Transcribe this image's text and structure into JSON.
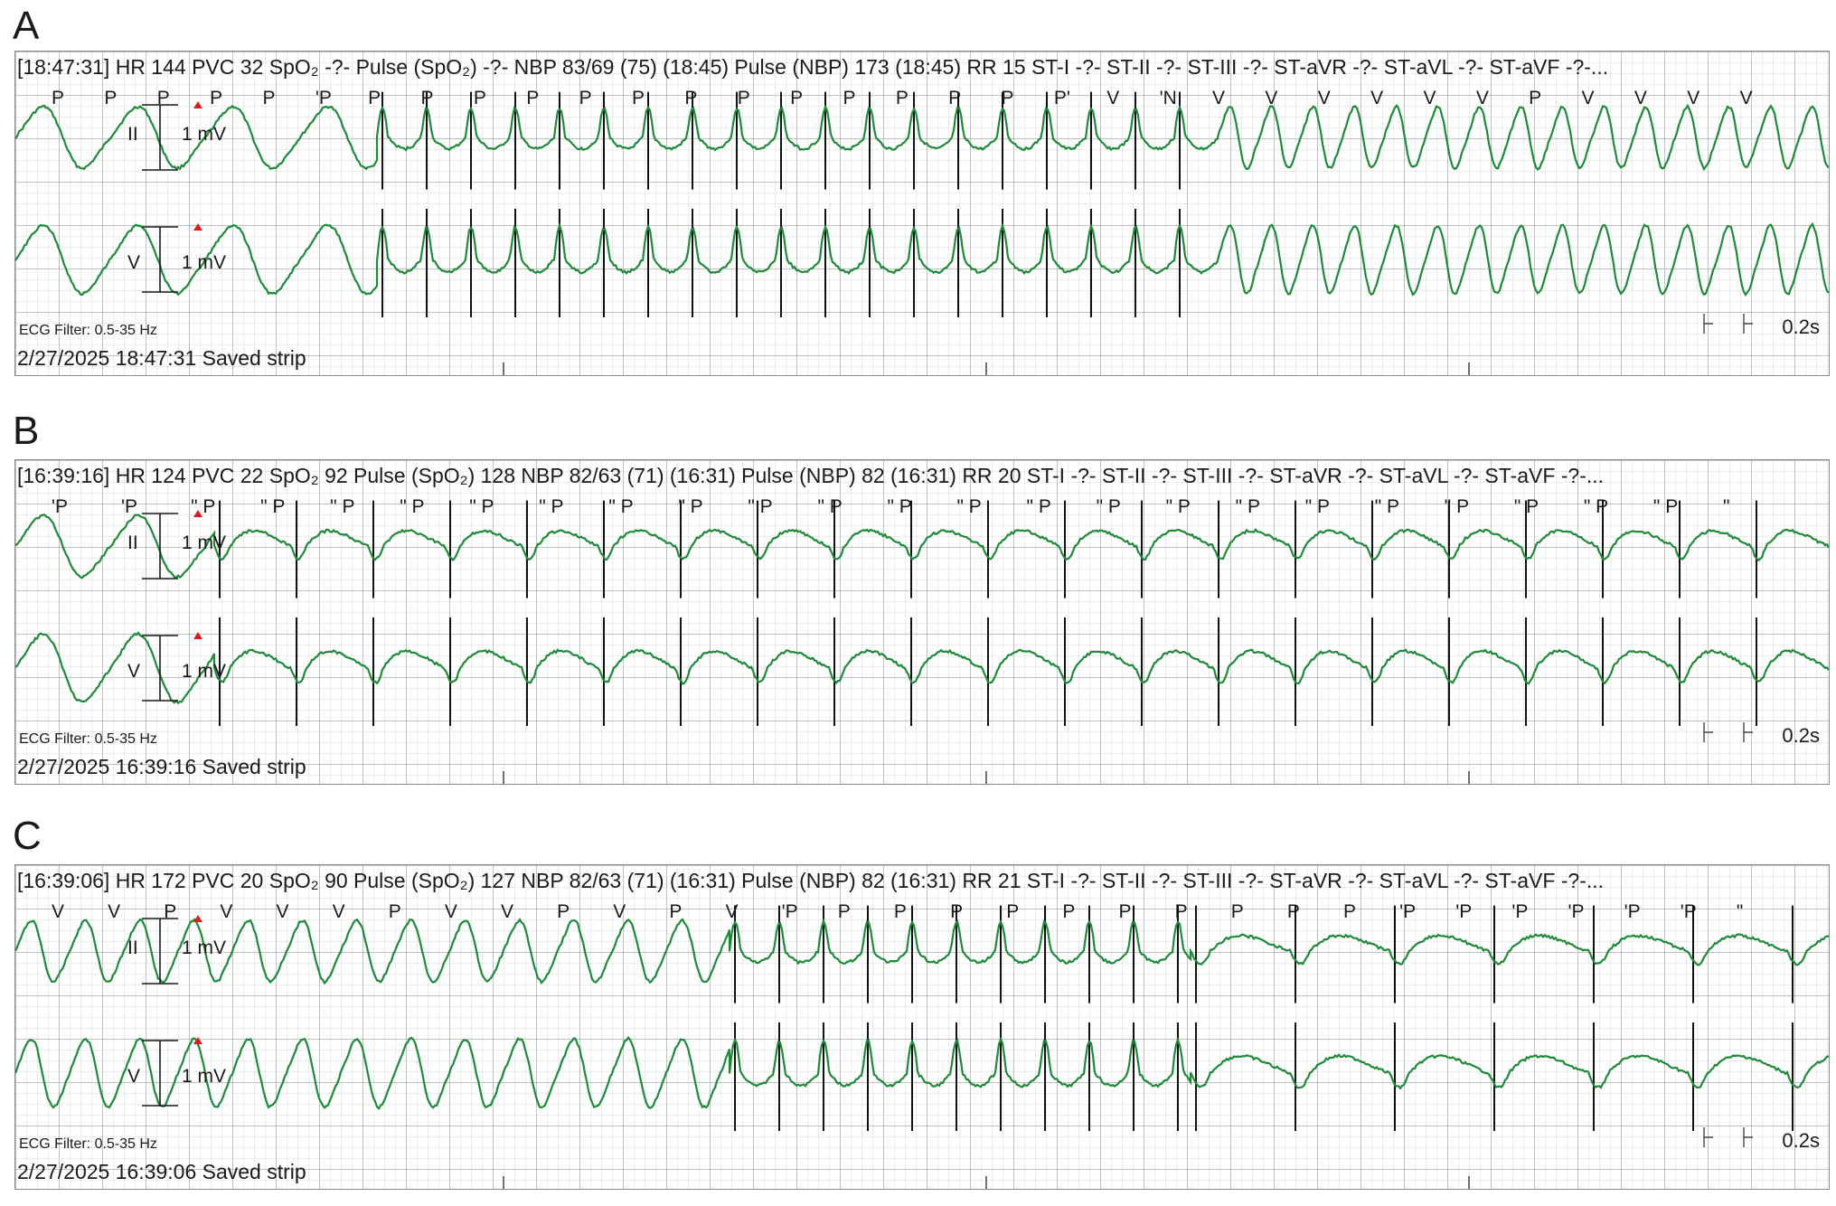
{
  "panels": [
    {
      "letter": "A",
      "header": "[18:47:31] HR 144  PVC 32  SpO₂ -?-  Pulse (SpO₂) -?-  NBP 83/69 (75) (18:45)  Pulse (NBP) 173 (18:45)  RR 15  ST-I -?-  ST-II -?-  ST-III -?-  ST-aVR -?-  ST-aVL -?-  ST-aVF -?-...",
      "beat_labels": [
        "P",
        "P",
        "P",
        "P",
        "P",
        "'P",
        "P",
        "P",
        "P",
        "P",
        "P",
        "P",
        "P",
        "P",
        "P",
        "P",
        "P",
        "P",
        "P",
        "P'",
        "V",
        "'N",
        "V",
        "V",
        "V",
        "V",
        "V",
        "V",
        "P",
        "V",
        "V",
        "V",
        "V"
      ],
      "lead_top": "II",
      "lead_bottom": "V",
      "calibration": "1 mV",
      "filter": "ECG Filter: 0.5-35 Hz",
      "saved": "2/27/2025 18:47:31  Saved strip",
      "scale": "0.2s"
    },
    {
      "letter": "B",
      "header": "[16:39:16] HR 124  PVC 22  SpO₂ 92  Pulse (SpO₂) 128  NBP 82/63 (71) (16:31)  Pulse (NBP) 82 (16:31)  RR 20  ST-I -?-  ST-II -?-  ST-III -?-  ST-aVR -?-  ST-aVL -?-  ST-aVF -?-...",
      "beat_labels": [
        "'P",
        "'P",
        "\" P",
        "\" P",
        "\" P",
        "\" P",
        "\" P",
        "\" P",
        "\" P",
        "\" P",
        "\" P",
        "\" P",
        "\" P",
        "\" P",
        "\" P",
        "\" P",
        "\" P",
        "\" P",
        "\" P",
        "\" P",
        "\" P",
        "\" P",
        "\" P",
        "\" P",
        "\""
      ],
      "lead_top": "II",
      "lead_bottom": "V",
      "calibration": "1 mV",
      "filter": "ECG Filter: 0.5-35 Hz",
      "saved": "2/27/2025 16:39:16  Saved strip",
      "scale": "0.2s"
    },
    {
      "letter": "C",
      "header": "[16:39:06] HR 172  PVC 20  SpO₂ 90  Pulse (SpO₂) 127  NBP 82/63 (71) (16:31)  Pulse (NBP) 82 (16:31)  RR 21  ST-I -?-  ST-II -?-  ST-III -?-  ST-aVR -?-  ST-aVL -?-  ST-aVF -?-...",
      "beat_labels": [
        "V",
        "V",
        "P",
        "V",
        "V",
        "V",
        "P",
        "V",
        "V",
        "P",
        "V",
        "P",
        "V",
        "'P",
        "P",
        "P",
        "P",
        "P",
        "P",
        "P",
        "P",
        "P",
        "P",
        "P",
        "'P",
        "'P",
        "'P",
        "'P",
        "'P",
        "'P",
        "\""
      ],
      "lead_top": "II",
      "lead_bottom": "V",
      "calibration": "1 mV",
      "filter": "ECG Filter: 0.5-35 Hz",
      "saved": "2/27/2025 16:39:06  Saved strip",
      "scale": "0.2s"
    }
  ],
  "colors": {
    "trace": "#1f8a3a",
    "spike": "#111111",
    "marker": "#d62020",
    "grid": "#b0b0b0"
  },
  "chart_data": [
    {
      "type": "line",
      "title": "",
      "series": [
        {
          "name": "II",
          "pattern": "wide-complex rhythm, then paced segment, then wide-complex rhythm"
        },
        {
          "name": "V",
          "pattern": "wide-complex rhythm, then paced segment, then wide-complex rhythm"
        }
      ],
      "xlabel": "",
      "ylabel": "",
      "grid": true
    },
    {
      "type": "line",
      "title": "",
      "series": [
        {
          "name": "II",
          "pattern": "regular paced rhythm"
        },
        {
          "name": "V",
          "pattern": "regular paced rhythm"
        }
      ],
      "xlabel": "",
      "ylabel": "",
      "grid": true
    },
    {
      "type": "line",
      "title": "",
      "series": [
        {
          "name": "II",
          "pattern": "wide-complex rhythm, then paced segment, then slower paced rhythm"
        },
        {
          "name": "V",
          "pattern": "wide-complex rhythm, then paced segment, then slower paced rhythm"
        }
      ],
      "xlabel": "",
      "ylabel": "",
      "grid": true
    }
  ]
}
